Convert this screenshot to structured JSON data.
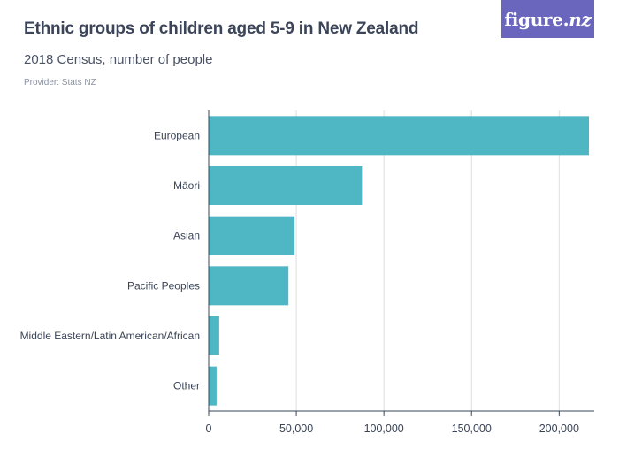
{
  "header": {
    "title": "Ethnic groups of children aged 5-9 in New Zealand",
    "subtitle": "2018 Census, number of people",
    "provider": "Provider: Stats NZ"
  },
  "logo": {
    "name": "figure",
    "dot": ".",
    "suffix": "nz",
    "background": "#6a66be"
  },
  "colors": {
    "bar": "#4fb6c3",
    "grid": "#dedede",
    "axis": "#3a4457"
  },
  "chart_data": {
    "type": "bar",
    "orientation": "horizontal",
    "title": "Ethnic groups of children aged 5-9 in New Zealand",
    "subtitle": "2018 Census, number of people",
    "xlabel": "",
    "ylabel": "",
    "categories": [
      "European",
      "Māori",
      "Asian",
      "Pacific Peoples",
      "Middle Eastern/Latin American/African",
      "Other"
    ],
    "values": [
      217000,
      87500,
      49000,
      45500,
      6000,
      4500
    ],
    "xlim": [
      0,
      217500
    ],
    "ticks": [
      0,
      50000,
      100000,
      150000,
      200000
    ],
    "tick_labels": [
      "0",
      "50,000",
      "100,000",
      "150,000",
      "200,000"
    ],
    "grid": true
  }
}
